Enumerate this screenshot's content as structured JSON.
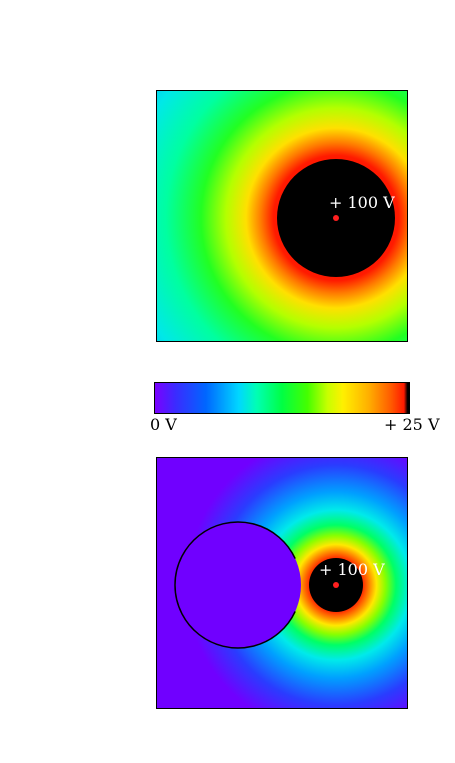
{
  "top_panel": {
    "voltage_label": "+ 100 V"
  },
  "colorbar": {
    "min_label": "0 V",
    "max_label": "+ 25 V",
    "colors": [
      "#7a00ff",
      "#0066ff",
      "#00d7ff",
      "#00ff44",
      "#fff000",
      "#ff5a00",
      "#ff1a00",
      "#000000"
    ]
  },
  "bottom_panel": {
    "voltage_label": "+ 100 V"
  },
  "colors": {
    "charge_dot": "#ff2020",
    "conductor": "#000000",
    "background": "#ffffff"
  }
}
